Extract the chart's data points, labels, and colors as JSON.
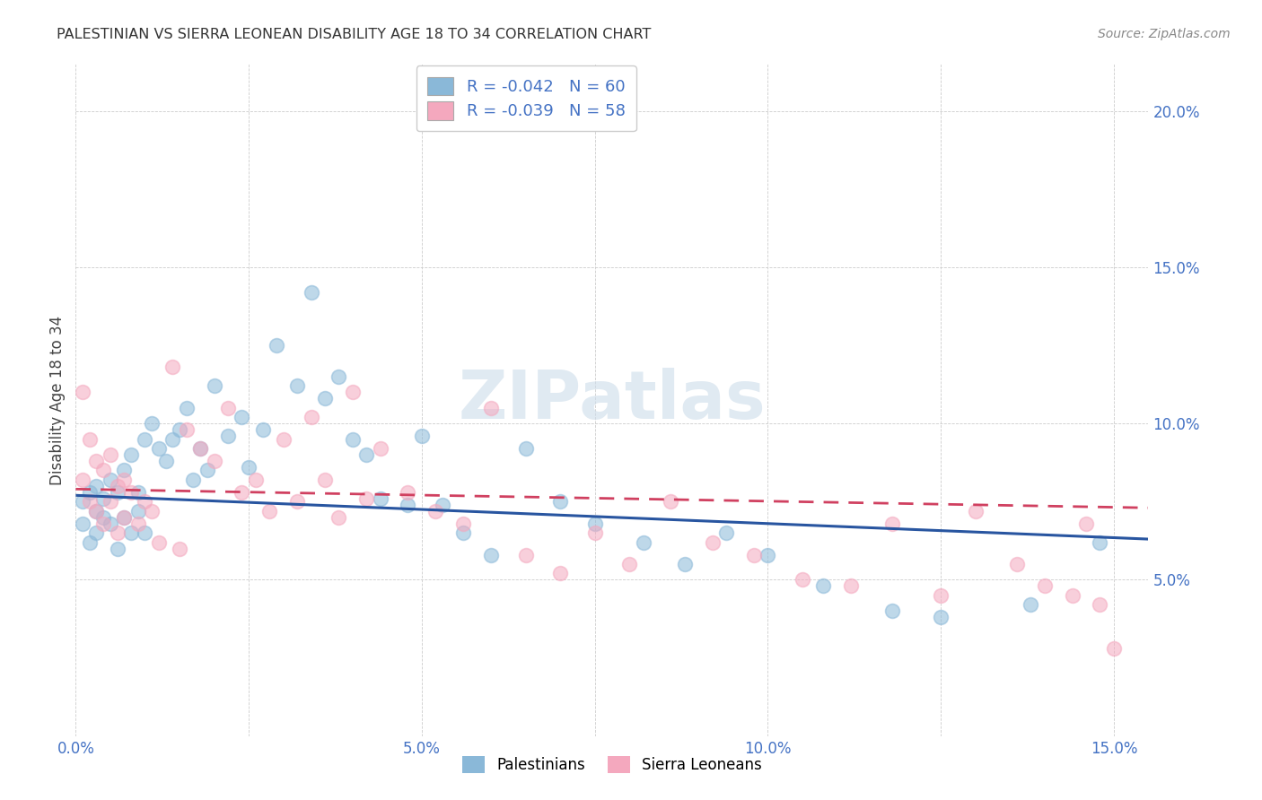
{
  "title": "PALESTINIAN VS SIERRA LEONEAN DISABILITY AGE 18 TO 34 CORRELATION CHART",
  "source": "Source: ZipAtlas.com",
  "ylabel": "Disability Age 18 to 34",
  "xlim": [
    0.0,
    0.155
  ],
  "ylim": [
    0.0,
    0.215
  ],
  "xtick_labels": [
    "0.0%",
    "",
    "5.0%",
    "",
    "10.0%",
    "",
    "15.0%"
  ],
  "xtick_vals": [
    0.0,
    0.025,
    0.05,
    0.075,
    0.1,
    0.125,
    0.15
  ],
  "ytick_labels": [
    "5.0%",
    "10.0%",
    "15.0%",
    "20.0%"
  ],
  "ytick_vals": [
    0.05,
    0.1,
    0.15,
    0.2
  ],
  "blue_r": "-0.042",
  "blue_n": "60",
  "pink_r": "-0.039",
  "pink_n": "58",
  "legend_palestinians": "Palestinians",
  "legend_sierraleoneans": "Sierra Leoneans",
  "blue_scatter_color": "#8ab8d8",
  "pink_scatter_color": "#f4a8be",
  "blue_line_color": "#2855a0",
  "pink_line_color": "#d04060",
  "watermark": "ZIPatlas",
  "blue_line_start_y": 0.077,
  "blue_line_end_y": 0.063,
  "pink_line_start_y": 0.079,
  "pink_line_end_y": 0.073,
  "blue_scatter_x": [
    0.001,
    0.001,
    0.002,
    0.002,
    0.003,
    0.003,
    0.003,
    0.004,
    0.004,
    0.005,
    0.005,
    0.006,
    0.006,
    0.007,
    0.007,
    0.008,
    0.008,
    0.009,
    0.009,
    0.01,
    0.01,
    0.011,
    0.012,
    0.013,
    0.014,
    0.015,
    0.016,
    0.017,
    0.018,
    0.019,
    0.02,
    0.022,
    0.024,
    0.025,
    0.027,
    0.029,
    0.032,
    0.034,
    0.036,
    0.038,
    0.04,
    0.042,
    0.044,
    0.048,
    0.05,
    0.053,
    0.056,
    0.06,
    0.065,
    0.07,
    0.075,
    0.082,
    0.088,
    0.094,
    0.1,
    0.108,
    0.118,
    0.125,
    0.138,
    0.148
  ],
  "blue_scatter_y": [
    0.075,
    0.068,
    0.078,
    0.062,
    0.072,
    0.065,
    0.08,
    0.07,
    0.076,
    0.082,
    0.068,
    0.078,
    0.06,
    0.085,
    0.07,
    0.09,
    0.065,
    0.078,
    0.072,
    0.095,
    0.065,
    0.1,
    0.092,
    0.088,
    0.095,
    0.098,
    0.105,
    0.082,
    0.092,
    0.085,
    0.112,
    0.096,
    0.102,
    0.086,
    0.098,
    0.125,
    0.112,
    0.142,
    0.108,
    0.115,
    0.095,
    0.09,
    0.076,
    0.074,
    0.096,
    0.074,
    0.065,
    0.058,
    0.092,
    0.075,
    0.068,
    0.062,
    0.055,
    0.065,
    0.058,
    0.048,
    0.04,
    0.038,
    0.042,
    0.062
  ],
  "pink_scatter_x": [
    0.001,
    0.001,
    0.002,
    0.002,
    0.003,
    0.003,
    0.004,
    0.004,
    0.005,
    0.005,
    0.006,
    0.006,
    0.007,
    0.007,
    0.008,
    0.009,
    0.01,
    0.011,
    0.012,
    0.014,
    0.015,
    0.016,
    0.018,
    0.02,
    0.022,
    0.024,
    0.026,
    0.028,
    0.03,
    0.032,
    0.034,
    0.036,
    0.038,
    0.04,
    0.042,
    0.044,
    0.048,
    0.052,
    0.056,
    0.06,
    0.065,
    0.07,
    0.075,
    0.08,
    0.086,
    0.092,
    0.098,
    0.105,
    0.112,
    0.118,
    0.125,
    0.13,
    0.136,
    0.14,
    0.144,
    0.146,
    0.148,
    0.15
  ],
  "pink_scatter_y": [
    0.11,
    0.082,
    0.095,
    0.075,
    0.088,
    0.072,
    0.085,
    0.068,
    0.09,
    0.075,
    0.08,
    0.065,
    0.082,
    0.07,
    0.078,
    0.068,
    0.075,
    0.072,
    0.062,
    0.118,
    0.06,
    0.098,
    0.092,
    0.088,
    0.105,
    0.078,
    0.082,
    0.072,
    0.095,
    0.075,
    0.102,
    0.082,
    0.07,
    0.11,
    0.076,
    0.092,
    0.078,
    0.072,
    0.068,
    0.105,
    0.058,
    0.052,
    0.065,
    0.055,
    0.075,
    0.062,
    0.058,
    0.05,
    0.048,
    0.068,
    0.045,
    0.072,
    0.055,
    0.048,
    0.045,
    0.068,
    0.042,
    0.028
  ]
}
